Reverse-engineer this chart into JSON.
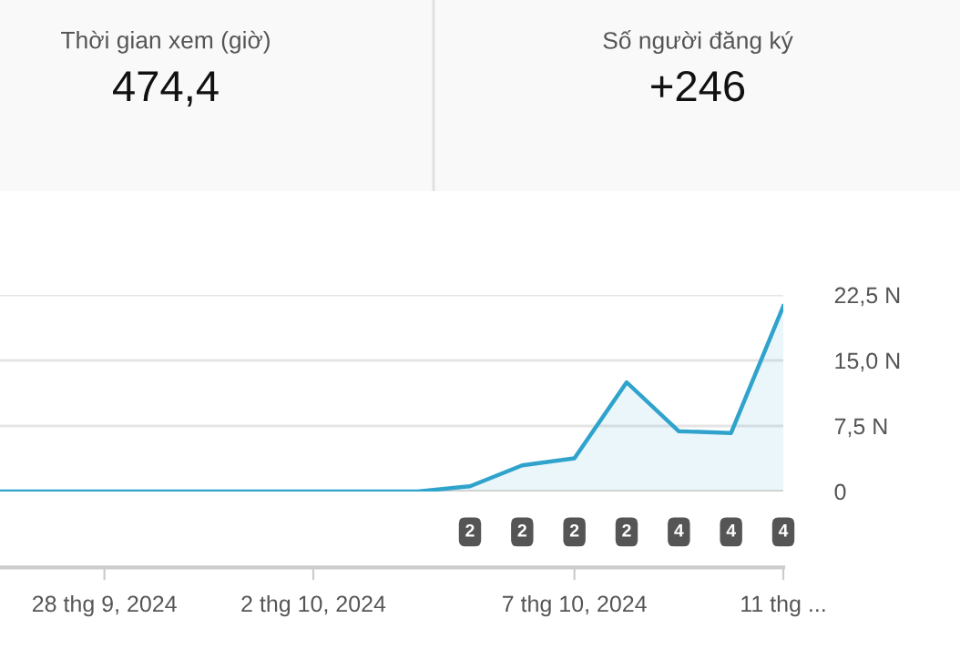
{
  "chart_data": [
    {
      "type": "other",
      "annotations": [
        "Thời gian xem (giờ)",
        "474,4",
        "Số người đăng ký",
        "+246"
      ]
    },
    {
      "type": "area",
      "x": [
        "2024-09-26",
        "2024-09-27",
        "2024-09-28",
        "2024-09-29",
        "2024-09-30",
        "2024-10-01",
        "2024-10-02",
        "2024-10-03",
        "2024-10-04",
        "2024-10-05",
        "2024-10-06",
        "2024-10-07",
        "2024-10-08",
        "2024-10-09",
        "2024-10-10",
        "2024-10-11"
      ],
      "series": [
        {
          "color": "#2fa3cc",
          "values": [
            0,
            0,
            0,
            0,
            0,
            0,
            0,
            0,
            0,
            0.6,
            3.0,
            3.8,
            12.5,
            6.9,
            6.7,
            21.2
          ]
        }
      ],
      "xlim": [
        "2024-09-26",
        "2024-10-11"
      ],
      "xticks": [
        {
          "value": "2024-09-28",
          "label": "28 thg 9, 2024"
        },
        {
          "value": "2024-10-02",
          "label": "2 thg 10, 2024"
        },
        {
          "value": "2024-10-07",
          "label": "7 thg 10, 2024"
        },
        {
          "value": "2024-10-11",
          "label": "11 thg ..."
        }
      ],
      "ylim": [
        0,
        22.5
      ],
      "yticks": [
        {
          "value": 0,
          "label": "0"
        },
        {
          "value": 7.5,
          "label": "7,5 N"
        },
        {
          "value": 15,
          "label": "15,0 N"
        },
        {
          "value": 22.5,
          "label": "22,5 N"
        }
      ],
      "grid": "y",
      "annotations": [
        "2",
        "2",
        "2",
        "2",
        "4",
        "4",
        "4"
      ]
    }
  ]
}
